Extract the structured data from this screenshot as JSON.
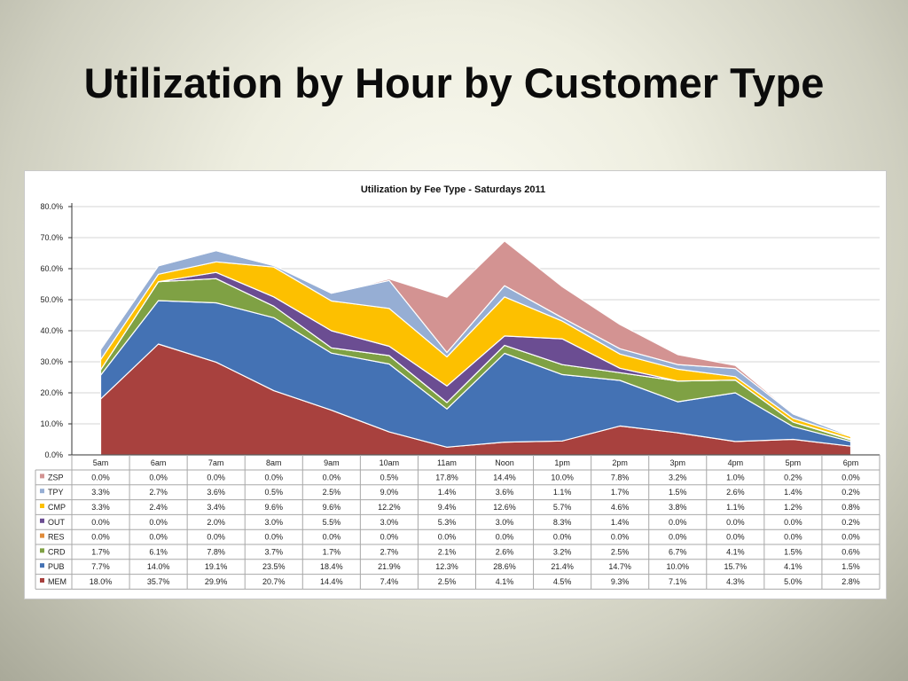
{
  "slide": {
    "title": "Utilization by Hour by Customer Type"
  },
  "chart_data": {
    "type": "area",
    "title": "Utilization by Fee Type - Saturdays 2011",
    "stacked": true,
    "ylim": [
      0,
      80
    ],
    "yticks": [
      "0.0%",
      "10.0%",
      "20.0%",
      "30.0%",
      "40.0%",
      "50.0%",
      "60.0%",
      "70.0%",
      "80.0%"
    ],
    "grid": true,
    "legend": "data-table",
    "categories": [
      "5am",
      "6am",
      "7am",
      "8am",
      "9am",
      "10am",
      "11am",
      "Noon",
      "1pm",
      "2pm",
      "3pm",
      "4pm",
      "5pm",
      "6pm"
    ],
    "series": [
      {
        "name": "MEM",
        "color": "#a8413e",
        "values": [
          "18.0%",
          "35.7%",
          "29.9%",
          "20.7%",
          "14.4%",
          "7.4%",
          "2.5%",
          "4.1%",
          "4.5%",
          "9.3%",
          "7.1%",
          "4.3%",
          "5.0%",
          "2.8%"
        ]
      },
      {
        "name": "PUB",
        "color": "#4472b4",
        "values": [
          "7.7%",
          "14.0%",
          "19.1%",
          "23.5%",
          "18.4%",
          "21.9%",
          "12.3%",
          "28.6%",
          "21.4%",
          "14.7%",
          "10.0%",
          "15.7%",
          "4.1%",
          "1.5%"
        ]
      },
      {
        "name": "CRD",
        "color": "#7fa144",
        "values": [
          "1.7%",
          "6.1%",
          "7.8%",
          "3.7%",
          "1.7%",
          "2.7%",
          "2.1%",
          "2.6%",
          "3.2%",
          "2.5%",
          "6.7%",
          "4.1%",
          "1.5%",
          "0.6%"
        ]
      },
      {
        "name": "RES",
        "color": "#e08b3a",
        "values": [
          "0.0%",
          "0.0%",
          "0.0%",
          "0.0%",
          "0.0%",
          "0.0%",
          "0.0%",
          "0.0%",
          "0.0%",
          "0.0%",
          "0.0%",
          "0.0%",
          "0.0%",
          "0.0%"
        ]
      },
      {
        "name": "OUT",
        "color": "#6b4d92",
        "values": [
          "0.0%",
          "0.0%",
          "2.0%",
          "3.0%",
          "5.5%",
          "3.0%",
          "5.3%",
          "3.0%",
          "8.3%",
          "1.4%",
          "0.0%",
          "0.0%",
          "0.0%",
          "0.2%"
        ]
      },
      {
        "name": "CMP",
        "color": "#fdc000",
        "values": [
          "3.3%",
          "2.4%",
          "3.4%",
          "9.6%",
          "9.6%",
          "12.2%",
          "9.4%",
          "12.6%",
          "5.7%",
          "4.6%",
          "3.8%",
          "1.1%",
          "1.2%",
          "0.8%"
        ]
      },
      {
        "name": "TPY",
        "color": "#96aed4",
        "values": [
          "3.3%",
          "2.7%",
          "3.6%",
          "0.5%",
          "2.5%",
          "9.0%",
          "1.4%",
          "3.6%",
          "1.1%",
          "1.7%",
          "1.5%",
          "2.6%",
          "1.4%",
          "0.2%"
        ]
      },
      {
        "name": "ZSP",
        "color": "#d39392",
        "values": [
          "0.0%",
          "0.0%",
          "0.0%",
          "0.0%",
          "0.0%",
          "0.5%",
          "17.8%",
          "14.4%",
          "10.0%",
          "7.8%",
          "3.2%",
          "1.0%",
          "0.2%",
          "0.0%"
        ]
      }
    ],
    "table_row_order": [
      "ZSP",
      "TPY",
      "CMP",
      "OUT",
      "RES",
      "CRD",
      "PUB",
      "MEM"
    ]
  }
}
